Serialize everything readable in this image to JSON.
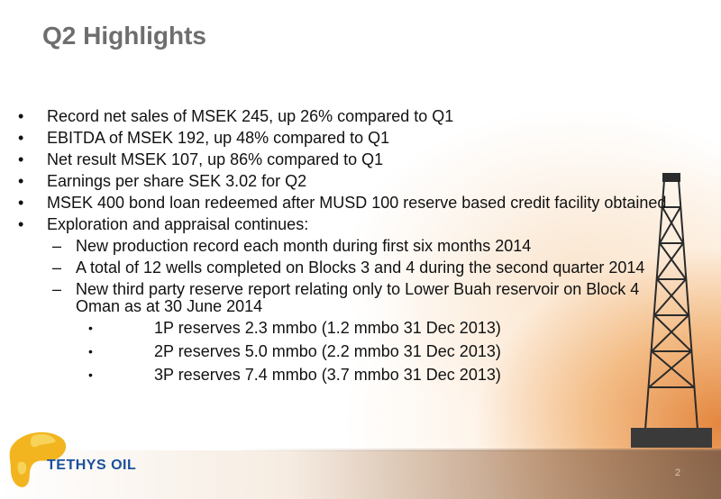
{
  "slide": {
    "title": "Q2 Highlights",
    "page_number": "2",
    "logo_text": "TETHYS OIL",
    "bullets": [
      {
        "text": "Record net sales of MSEK 245, up 26% compared to Q1"
      },
      {
        "text": "EBITDA of MSEK 192, up 48% compared to Q1"
      },
      {
        "text": "Net result MSEK 107, up 86% compared to Q1"
      },
      {
        "text": "Earnings per share SEK 3.02 for Q2"
      },
      {
        "text": "MSEK 400 bond loan redeemed after MUSD 100 reserve based credit facility obtained"
      },
      {
        "text": "Exploration and appraisal continues:"
      }
    ],
    "sub_bullets": [
      {
        "text": "New production record each month during first six months 2014"
      },
      {
        "text": "A total of 12 wells completed on Blocks 3 and 4 during the second quarter 2014"
      },
      {
        "text": "New third party reserve report relating only to Lower Buah reservoir on Block 4 Oman as at 30 June 2014"
      }
    ],
    "sub_sub_bullets": [
      {
        "text": "1P reserves 2.3 mmbo (1.2 mmbo 31 Dec 2013)"
      },
      {
        "text": "2P reserves 5.0 mmbo (2.2 mmbo 31 Dec 2013)"
      },
      {
        "text": "3P reserves 7.4 mmbo (3.7 mmbo 31 Dec 2013)"
      }
    ],
    "bullet_symbol": "•",
    "dash_symbol": "–"
  }
}
